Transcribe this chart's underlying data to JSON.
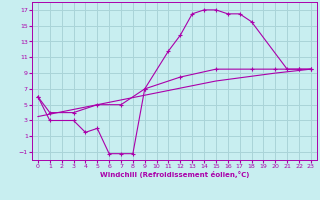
{
  "background_color": "#c8eef0",
  "grid_color": "#aad4d8",
  "line_color": "#aa00aa",
  "marker": "+",
  "xlabel": "Windchill (Refroidissement éolien,°C)",
  "xlim": [
    -0.5,
    23.5
  ],
  "ylim": [
    -2,
    18
  ],
  "xticks": [
    0,
    1,
    2,
    3,
    4,
    5,
    6,
    7,
    8,
    9,
    10,
    11,
    12,
    13,
    14,
    15,
    16,
    17,
    18,
    19,
    20,
    21,
    22,
    23
  ],
  "yticks": [
    -1,
    1,
    3,
    5,
    7,
    9,
    11,
    13,
    15,
    17
  ],
  "curve1_x": [
    0,
    1,
    3,
    4,
    5,
    6,
    7,
    8,
    9,
    11,
    12,
    13,
    14,
    15,
    16,
    17,
    18,
    21,
    22,
    23
  ],
  "curve1_y": [
    6,
    3,
    3,
    1.5,
    2,
    -1.2,
    -1.2,
    -1.2,
    7,
    11.8,
    13.8,
    16.5,
    17,
    17,
    16.5,
    16.5,
    15.5,
    9.5,
    9.5,
    9.5
  ],
  "curve2_x": [
    0,
    1,
    3,
    5,
    7,
    9,
    12,
    15,
    18,
    20,
    22,
    23
  ],
  "curve2_y": [
    6,
    4,
    4,
    5,
    5,
    7,
    8.5,
    9.5,
    9.5,
    9.5,
    9.5,
    9.5
  ],
  "curve3_x": [
    0,
    5,
    10,
    15,
    20,
    23
  ],
  "curve3_y": [
    3.5,
    5,
    6.5,
    8,
    9,
    9.5
  ]
}
